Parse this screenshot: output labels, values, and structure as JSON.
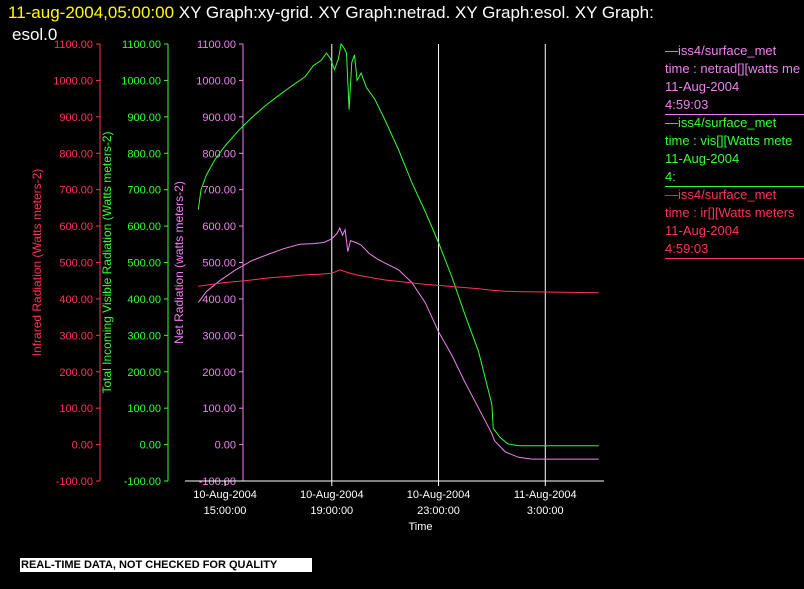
{
  "header": {
    "date": "11-aug-2004,05:00:00",
    "titles_line1": "XY Graph:xy-grid.  XY Graph:netrad.  XY Graph:esol.  XY Graph:",
    "titles_line2": "esol.0"
  },
  "legend": [
    {
      "source": "—iss4/surface_met",
      "var": "time : netrad[][watts me",
      "date": "11-Aug-2004",
      "time": "4:59:03",
      "color": "#ee82ee"
    },
    {
      "source": "—iss4/surface_met",
      "var": "time : vis[][Watts mete",
      "date": "11-Aug-2004",
      "time": "4:",
      "color": "#33ff33"
    },
    {
      "source": "—iss4/surface_met",
      "var": "time : ir[][Watts meters",
      "date": "11-Aug-2004",
      "time": "4:59:03",
      "color": "#ff3355"
    }
  ],
  "banner": "REAL-TIME DATA, NOT CHECKED FOR QUALITY",
  "chart_data": {
    "type": "line",
    "xlabel": "Time",
    "x_range_hours": [
      13.5,
      29.2
    ],
    "x_ticks": [
      {
        "hours": 15,
        "line1": "10-Aug-2004",
        "line2": "15:00:00"
      },
      {
        "hours": 19,
        "line1": "10-Aug-2004",
        "line2": "19:00:00"
      },
      {
        "hours": 23,
        "line1": "10-Aug-2004",
        "line2": "23:00:00"
      },
      {
        "hours": 27,
        "line1": "11-Aug-2004",
        "line2": "3:00:00"
      }
    ],
    "vertical_gridlines_hours": [
      19,
      23,
      27
    ],
    "axes": [
      {
        "id": "ir",
        "label": "Infrared Radiation (Watts meters-2)",
        "ylim": [
          -100,
          1100
        ],
        "ticks": [
          "-100.00",
          "0.00",
          "100.00",
          "200.00",
          "300.00",
          "400.00",
          "500.00",
          "600.00",
          "700.00",
          "800.00",
          "900.00",
          "1000.00",
          "1100.00"
        ],
        "color": "#ff3355"
      },
      {
        "id": "vis",
        "label": "Total Incoming Visible Radiation (Watts meters-2)",
        "ylim": [
          -100,
          1100
        ],
        "ticks": [
          "-100.00",
          "0.00",
          "100.00",
          "200.00",
          "300.00",
          "400.00",
          "500.00",
          "600.00",
          "700.00",
          "800.00",
          "900.00",
          "1000.00",
          "1100.00"
        ],
        "color": "#33ff33"
      },
      {
        "id": "netrad",
        "label": "Net Radiation (watts meters-2)",
        "ylim": [
          -100,
          1100
        ],
        "ticks": [
          "-100.00",
          "0.00",
          "100.00",
          "200.00",
          "300.00",
          "400.00",
          "500.00",
          "600.00",
          "700.00",
          "800.00",
          "900.00",
          "1000.00",
          "1100.00"
        ],
        "color": "#ee82ee"
      }
    ],
    "series": [
      {
        "id": "vis",
        "color": "#33ff33",
        "points": [
          [
            14.0,
            645
          ],
          [
            14.1,
            700
          ],
          [
            14.3,
            740
          ],
          [
            14.6,
            780
          ],
          [
            15.0,
            820
          ],
          [
            15.5,
            862
          ],
          [
            16.0,
            898
          ],
          [
            16.5,
            930
          ],
          [
            17.0,
            958
          ],
          [
            17.5,
            985
          ],
          [
            18.0,
            1010
          ],
          [
            18.3,
            1040
          ],
          [
            18.6,
            1055
          ],
          [
            18.8,
            1075
          ],
          [
            18.95,
            1060
          ],
          [
            19.1,
            1030
          ],
          [
            19.25,
            1060
          ],
          [
            19.35,
            1100
          ],
          [
            19.45,
            1090
          ],
          [
            19.55,
            1075
          ],
          [
            19.65,
            920
          ],
          [
            19.75,
            1050
          ],
          [
            19.85,
            1070
          ],
          [
            19.95,
            1000
          ],
          [
            20.1,
            1020
          ],
          [
            20.3,
            980
          ],
          [
            20.6,
            950
          ],
          [
            21.0,
            890
          ],
          [
            21.5,
            810
          ],
          [
            22.0,
            720
          ],
          [
            22.5,
            640
          ],
          [
            23.0,
            555
          ],
          [
            23.5,
            460
          ],
          [
            24.0,
            355
          ],
          [
            24.5,
            255
          ],
          [
            25.0,
            110
          ],
          [
            25.05,
            45
          ],
          [
            25.3,
            20
          ],
          [
            25.6,
            2
          ],
          [
            26.0,
            -3
          ],
          [
            27.0,
            -3
          ],
          [
            28.0,
            -3
          ],
          [
            29.0,
            -3
          ]
        ]
      },
      {
        "id": "netrad",
        "color": "#ee82ee",
        "points": [
          [
            14.0,
            390
          ],
          [
            14.3,
            420
          ],
          [
            14.8,
            450
          ],
          [
            15.4,
            480
          ],
          [
            16.0,
            505
          ],
          [
            16.6,
            522
          ],
          [
            17.2,
            538
          ],
          [
            17.8,
            550
          ],
          [
            18.3,
            552
          ],
          [
            18.7,
            555
          ],
          [
            19.0,
            565
          ],
          [
            19.2,
            580
          ],
          [
            19.3,
            595
          ],
          [
            19.4,
            575
          ],
          [
            19.5,
            590
          ],
          [
            19.6,
            530
          ],
          [
            19.7,
            560
          ],
          [
            19.9,
            555
          ],
          [
            20.1,
            548
          ],
          [
            20.4,
            525
          ],
          [
            20.7,
            510
          ],
          [
            21.0,
            498
          ],
          [
            21.5,
            480
          ],
          [
            22.0,
            445
          ],
          [
            22.5,
            390
          ],
          [
            23.0,
            310
          ],
          [
            23.5,
            245
          ],
          [
            24.0,
            170
          ],
          [
            24.5,
            100
          ],
          [
            25.0,
            30
          ],
          [
            25.1,
            10
          ],
          [
            25.5,
            -20
          ],
          [
            26.0,
            -35
          ],
          [
            26.5,
            -40
          ],
          [
            27.0,
            -40
          ],
          [
            28.0,
            -40
          ],
          [
            29.0,
            -40
          ]
        ]
      },
      {
        "id": "ir",
        "color": "#ff3355",
        "points": [
          [
            14.0,
            435
          ],
          [
            14.5,
            440
          ],
          [
            15.0,
            445
          ],
          [
            15.5,
            448
          ],
          [
            16.0,
            452
          ],
          [
            16.5,
            457
          ],
          [
            17.0,
            460
          ],
          [
            17.5,
            463
          ],
          [
            18.0,
            466
          ],
          [
            18.5,
            468
          ],
          [
            19.0,
            470
          ],
          [
            19.3,
            480
          ],
          [
            19.5,
            475
          ],
          [
            19.7,
            470
          ],
          [
            20.0,
            465
          ],
          [
            20.5,
            458
          ],
          [
            21.0,
            452
          ],
          [
            21.5,
            448
          ],
          [
            22.0,
            444
          ],
          [
            22.5,
            440
          ],
          [
            23.0,
            437
          ],
          [
            23.5,
            434
          ],
          [
            24.0,
            431
          ],
          [
            24.5,
            428
          ],
          [
            25.0,
            424
          ],
          [
            25.5,
            421
          ],
          [
            26.0,
            420
          ],
          [
            27.0,
            419
          ],
          [
            28.0,
            418
          ],
          [
            29.0,
            417
          ]
        ]
      }
    ]
  }
}
